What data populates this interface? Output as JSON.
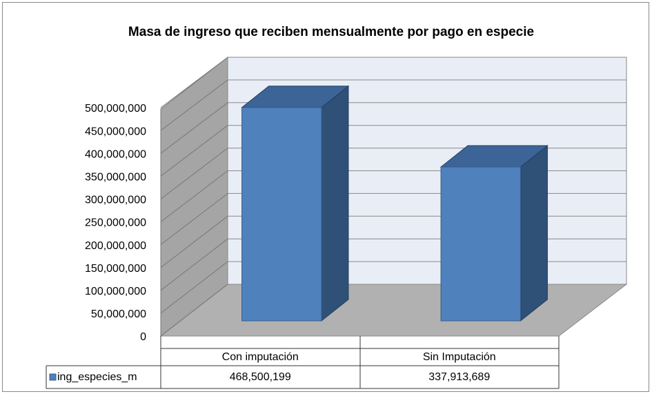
{
  "chart_data": {
    "type": "bar",
    "title": "Masa de ingreso que reciben mensualmente por pago en especie",
    "categories": [
      "Con imputación",
      "Sin Imputación"
    ],
    "series": [
      {
        "name": "ing_especies_m",
        "color": "#4f81bd",
        "values": [
          468500199,
          337913689
        ],
        "value_labels": [
          "468,500,199",
          "337,913,689"
        ]
      }
    ],
    "ylim": [
      0,
      500000000
    ],
    "yticks": [
      0,
      {
        "value": 50000000,
        "label": "50,000,000"
      },
      {
        "value": 100000000,
        "label": "100,000,000"
      },
      {
        "value": 150000000,
        "label": "150,000,000"
      },
      {
        "value": 200000000,
        "label": "200,000,000"
      },
      {
        "value": 250000000,
        "label": "250,000,000"
      },
      {
        "value": 300000000,
        "label": "300,000,000"
      },
      {
        "value": 350000000,
        "label": "350,000,000"
      },
      {
        "value": 400000000,
        "label": "400,000,000"
      },
      {
        "value": 450000000,
        "label": "450,000,000"
      },
      {
        "value": 500000000,
        "label": "500,000,000"
      }
    ],
    "grid": true
  }
}
